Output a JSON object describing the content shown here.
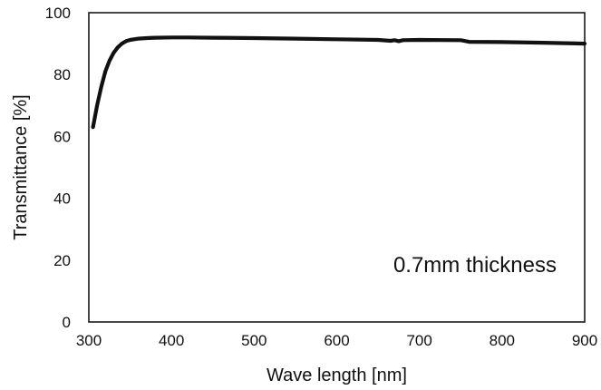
{
  "chart_data": {
    "type": "line",
    "title": "",
    "xlabel": "Wave length [nm]",
    "ylabel": "Transmittance [%]",
    "xlim": [
      300,
      900
    ],
    "ylim": [
      0,
      100
    ],
    "xticks": [
      300,
      400,
      500,
      600,
      700,
      800,
      900
    ],
    "yticks": [
      0,
      20,
      40,
      60,
      80,
      100
    ],
    "grid": false,
    "annotation": "0.7mm thickness",
    "series": [
      {
        "color": "#111111",
        "x": [
          305,
          310,
          315,
          320,
          325,
          330,
          335,
          340,
          345,
          350,
          360,
          370,
          380,
          400,
          420,
          450,
          500,
          550,
          600,
          650,
          665,
          670,
          675,
          680,
          700,
          750,
          760,
          800,
          850,
          900
        ],
        "y": [
          63,
          70,
          76,
          81,
          84.5,
          87,
          88.8,
          90,
          90.8,
          91.2,
          91.6,
          91.8,
          91.9,
          92.0,
          92.0,
          91.9,
          91.8,
          91.6,
          91.4,
          91.2,
          90.9,
          91.1,
          90.8,
          91.1,
          91.2,
          91.1,
          90.6,
          90.5,
          90.3,
          90.0
        ]
      }
    ]
  }
}
